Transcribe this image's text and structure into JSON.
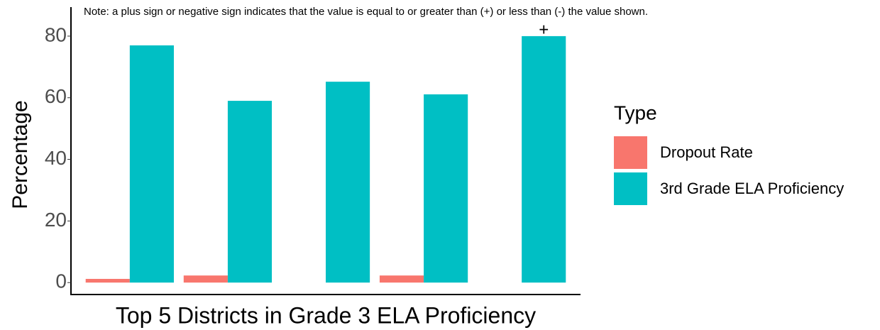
{
  "chart_data": {
    "type": "bar",
    "note": "Note: a plus sign or negative sign indicates that the value is equal to or greater than (+)  or less than (-) the value shown.",
    "xlabel": "Top 5 Districts in Grade 3 ELA Proficiency",
    "ylabel": "Percentage",
    "categories": [
      null,
      null,
      null,
      null,
      null
    ],
    "series": [
      {
        "name": "Dropout Rate",
        "color": "#F8766D",
        "values": [
          1.2,
          2.3,
          null,
          2.3,
          null
        ]
      },
      {
        "name": "3rd Grade ELA Proficiency",
        "color": "#00BFC4",
        "values": [
          77,
          59,
          65.2,
          61.1,
          80
        ]
      }
    ],
    "annotations": [
      {
        "text": "+"
      }
    ],
    "legend_title": "Type",
    "legend": "right",
    "ylim": [
      -4,
      80.9
    ],
    "yticks": [
      0,
      20,
      40,
      60,
      80
    ],
    "grid": false
  }
}
